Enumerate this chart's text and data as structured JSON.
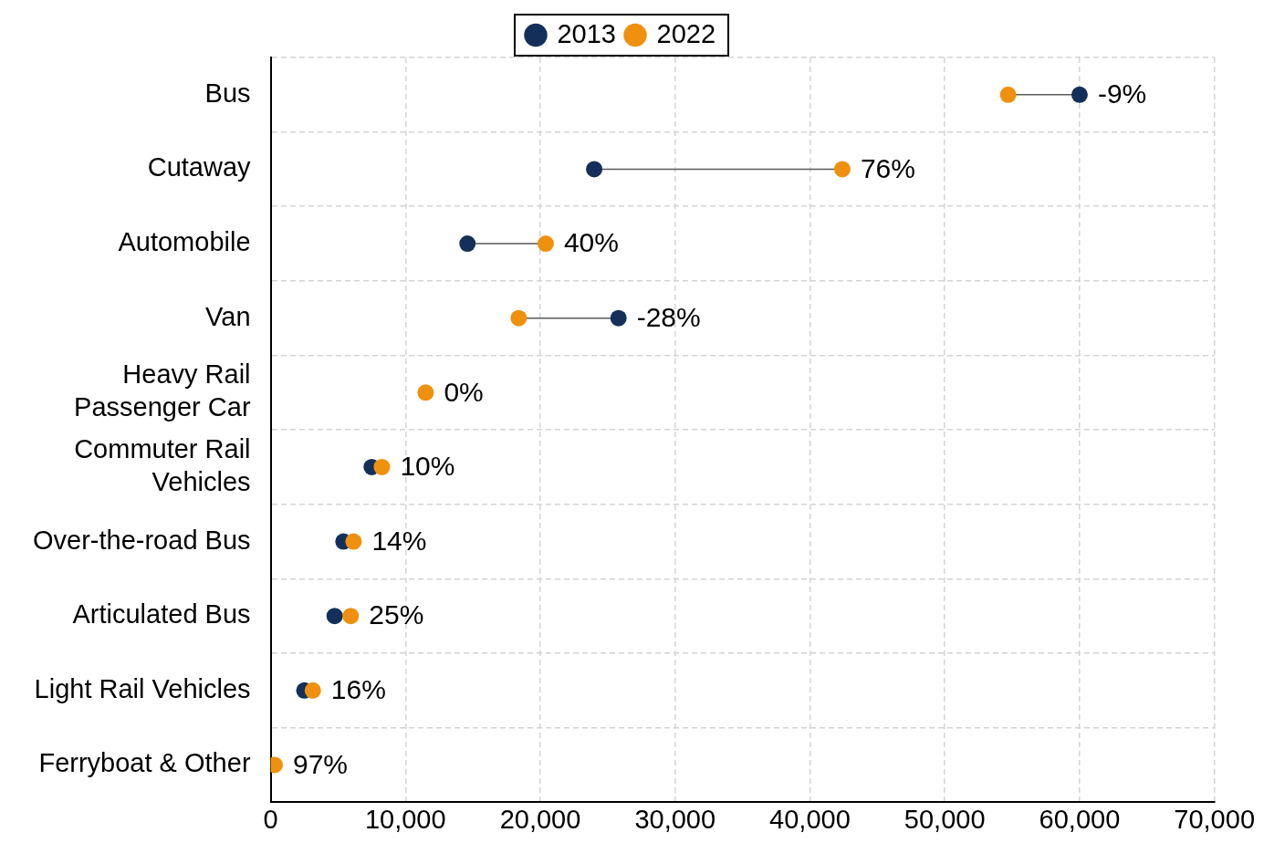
{
  "chart_data": {
    "type": "scatter",
    "orientation": "horizontal",
    "categories": [
      "Bus",
      "Cutaway",
      "Automobile",
      "Van",
      "Heavy Rail Passenger Car",
      "Commuter Rail Vehicles",
      "Over-the-road Bus",
      "Articulated Bus",
      "Light Rail Vehicles",
      "Ferryboat & Other"
    ],
    "series": [
      {
        "name": "2013",
        "color": "#14305a",
        "values": [
          60000,
          24000,
          14600,
          25800,
          null,
          7500,
          5400,
          4750,
          2500,
          null
        ]
      },
      {
        "name": "2022",
        "color": "#f0900f",
        "values": [
          54700,
          42400,
          20400,
          18400,
          11500,
          8250,
          6150,
          5940,
          3130,
          300
        ]
      }
    ],
    "annotations": [
      {
        "text": "-9%",
        "x": 60000,
        "y": "Bus"
      },
      {
        "text": "76%",
        "x": 42400,
        "y": "Cutaway"
      },
      {
        "text": "40%",
        "x": 20400,
        "y": "Automobile"
      },
      {
        "text": "-28%",
        "x": 25800,
        "y": "Van"
      },
      {
        "text": "0%",
        "x": 11500,
        "y": "Heavy Rail Passenger Car"
      },
      {
        "text": "10%",
        "x": 8250,
        "y": "Commuter Rail Vehicles"
      },
      {
        "text": "14%",
        "x": 6150,
        "y": "Over-the-road Bus"
      },
      {
        "text": "25%",
        "x": 5940,
        "y": "Articulated Bus"
      },
      {
        "text": "16%",
        "x": 3130,
        "y": "Light Rail Vehicles"
      },
      {
        "text": "97%",
        "x": 300,
        "y": "Ferryboat & Other"
      }
    ],
    "xlim": [
      0,
      70000
    ],
    "xticks": [
      0,
      {
        "value": 10000,
        "label": "10,000"
      },
      {
        "value": 20000,
        "label": "20,000"
      },
      {
        "value": 30000,
        "label": "30,000"
      },
      {
        "value": 40000,
        "label": "40,000"
      },
      {
        "value": 50000,
        "label": "50,000"
      },
      {
        "value": 60000,
        "label": "60,000"
      },
      {
        "value": 70000,
        "label": "70,000"
      }
    ],
    "grid": true,
    "legend": "top",
    "marker": "circle"
  }
}
